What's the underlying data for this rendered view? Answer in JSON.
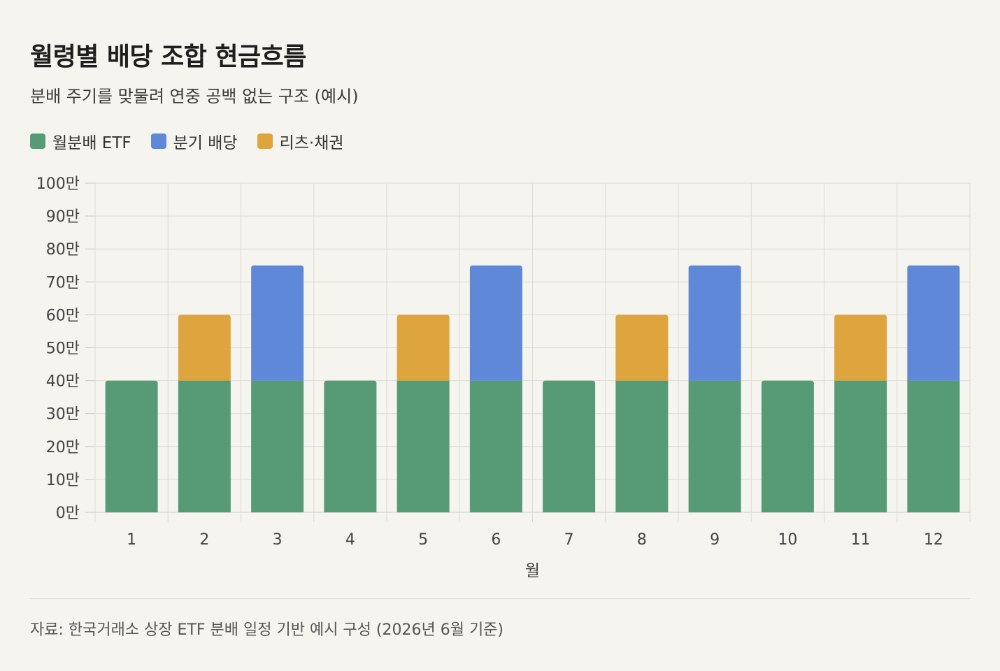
{
  "header": {
    "title": "월령별 배당 조합 현금흐름",
    "subtitle": "분배 주기를 맞물려 연중 공백 없는 구조 (예시)"
  },
  "legend": [
    {
      "label": "월분배 ETF",
      "color": "#569b76"
    },
    {
      "label": "분기 배당",
      "color": "#5f88d9"
    },
    {
      "label": "리츠·채권",
      "color": "#dea43e"
    }
  ],
  "footer": {
    "source": "자료: 한국거래소 상장 ETF 분배 일정 기반 예시 구성 (2026년 6월 기준)"
  },
  "chart_data": {
    "type": "bar",
    "stacked": true,
    "categories": [
      "1",
      "2",
      "3",
      "4",
      "5",
      "6",
      "7",
      "8",
      "9",
      "10",
      "11",
      "12"
    ],
    "series": [
      {
        "name": "월분배 ETF",
        "color": "#569b76",
        "values": [
          40,
          40,
          40,
          40,
          40,
          40,
          40,
          40,
          40,
          40,
          40,
          40
        ]
      },
      {
        "name": "분기 배당",
        "color": "#5f88d9",
        "values": [
          0,
          0,
          35,
          0,
          0,
          35,
          0,
          0,
          35,
          0,
          0,
          35
        ]
      },
      {
        "name": "리츠·채권",
        "color": "#dea43e",
        "values": [
          0,
          20,
          0,
          0,
          20,
          0,
          0,
          20,
          0,
          0,
          20,
          0
        ]
      }
    ],
    "xlabel": "월",
    "ylabel": "",
    "ylim": [
      0,
      100
    ],
    "yticks": [
      0,
      10,
      20,
      30,
      40,
      50,
      60,
      70,
      80,
      90,
      100
    ],
    "ytick_labels": [
      "0만",
      "10만",
      "20만",
      "30만",
      "40만",
      "50만",
      "60만",
      "70만",
      "80만",
      "90만",
      "100만"
    ],
    "grid": true,
    "legend_position": "top-left"
  }
}
